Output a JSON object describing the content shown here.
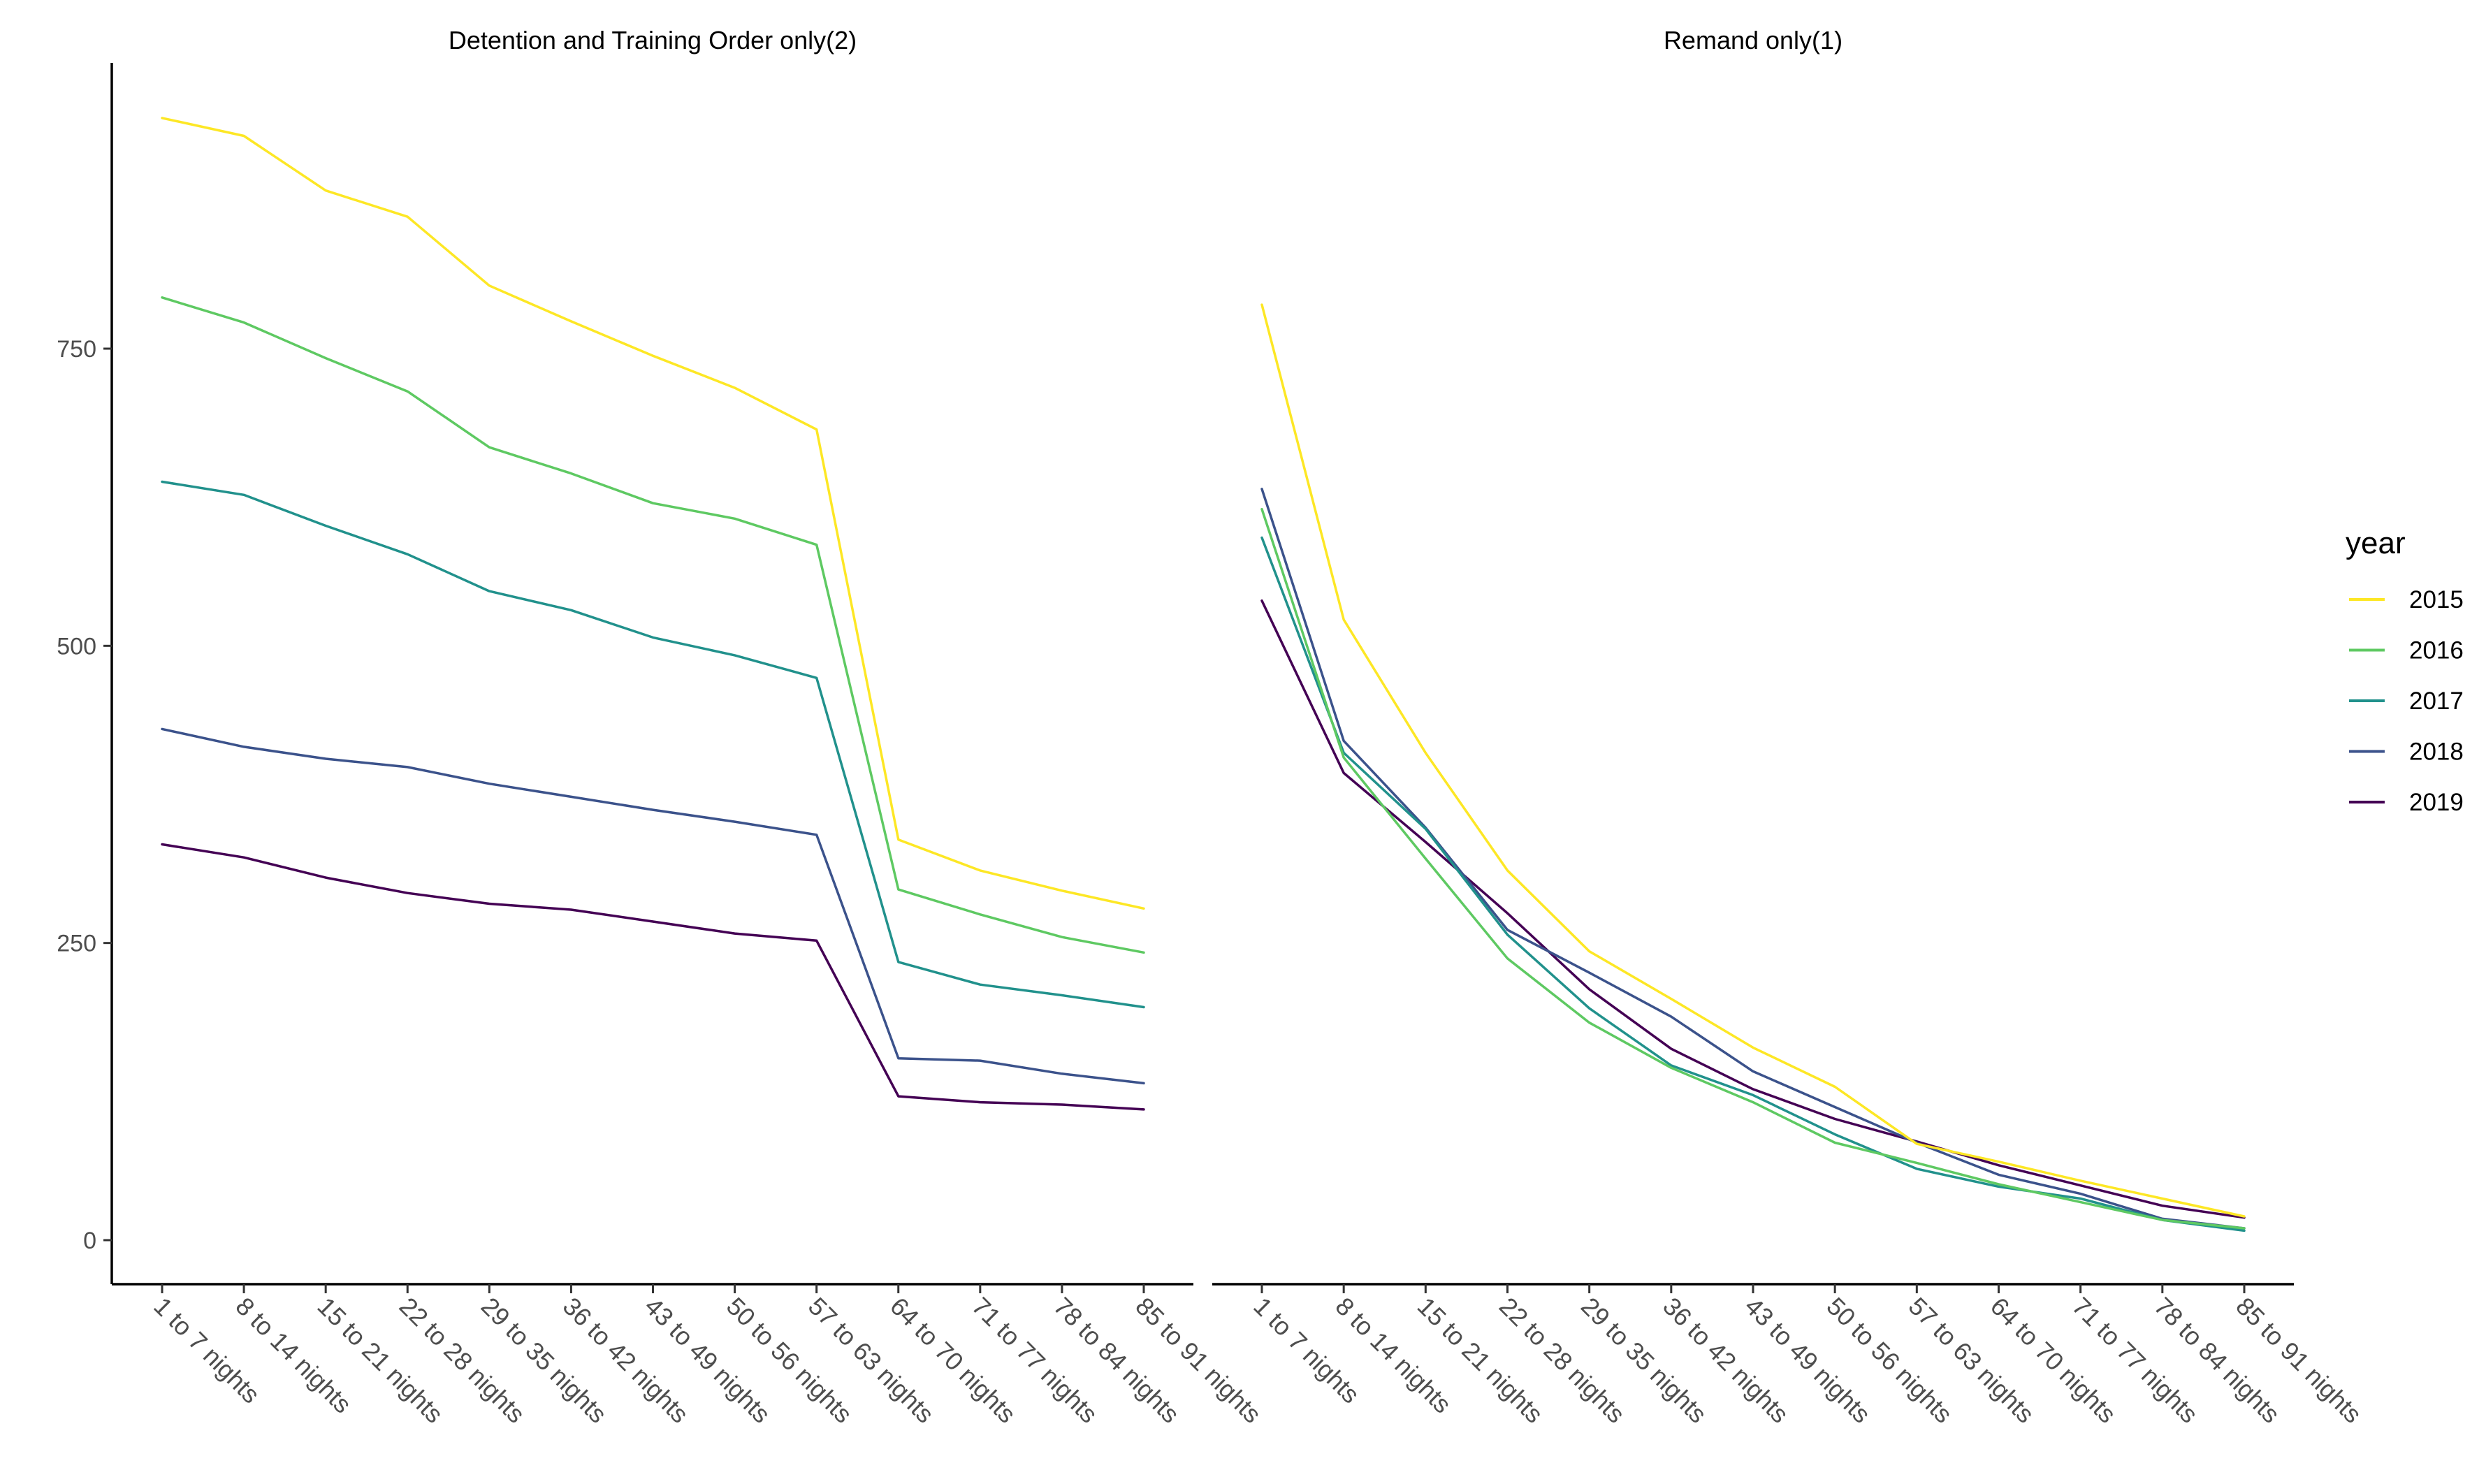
{
  "chart_data": [
    {
      "type": "line",
      "title": "Detention and Training Order only(2)",
      "xlabel": "",
      "ylabel": "",
      "ylim": [
        -40,
        1000
      ],
      "yticks": [
        0,
        250,
        500,
        750
      ],
      "categories": [
        "1 to 7 nights",
        "8 to 14 nights",
        "15 to 21 nights",
        "22 to 28 nights",
        "29 to 35 nights",
        "36 to 42 nights",
        "43 to 49 nights",
        "50 to 56 nights",
        "57 to 63 nights",
        "64 to 70 nights",
        "71 to 77 nights",
        "78 to 84 nights",
        "85 to 91 nights"
      ],
      "series": [
        {
          "name": "2015",
          "values": [
            944,
            929,
            883,
            861,
            803,
            773,
            744,
            717,
            682,
            337,
            311,
            294,
            279
          ]
        },
        {
          "name": "2016",
          "values": [
            793,
            772,
            742,
            714,
            667,
            645,
            620,
            607,
            585,
            295,
            274,
            255,
            242
          ]
        },
        {
          "name": "2017",
          "values": [
            638,
            627,
            601,
            577,
            546,
            530,
            507,
            492,
            473,
            234,
            215,
            206,
            196
          ]
        },
        {
          "name": "2018",
          "values": [
            430,
            415,
            405,
            398,
            384,
            373,
            362,
            352,
            341,
            153,
            151,
            140,
            132
          ]
        },
        {
          "name": "2019",
          "values": [
            333,
            322,
            305,
            292,
            283,
            278,
            268,
            258,
            252,
            121,
            116,
            114,
            110
          ]
        }
      ],
      "grid": false
    },
    {
      "type": "line",
      "title": "Remand only(1)",
      "xlabel": "",
      "ylabel": "",
      "ylim": [
        -40,
        1000
      ],
      "categories": [
        "1 to 7 nights",
        "8 to 14 nights",
        "15 to 21 nights",
        "22 to 28 nights",
        "29 to 35 nights",
        "36 to 42 nights",
        "43 to 49 nights",
        "50 to 56 nights",
        "57 to 63 nights",
        "64 to 70 nights",
        "71 to 77 nights",
        "78 to 84 nights",
        "85 to 91 nights"
      ],
      "series": [
        {
          "name": "2015",
          "values": [
            787,
            522,
            410,
            311,
            243,
            203,
            162,
            129,
            81,
            66,
            50,
            35,
            20
          ]
        },
        {
          "name": "2016",
          "values": [
            615,
            406,
            321,
            237,
            183,
            145,
            116,
            82,
            65,
            47,
            32,
            17,
            10
          ]
        },
        {
          "name": "2017",
          "values": [
            591,
            410,
            346,
            257,
            195,
            147,
            122,
            89,
            60,
            45,
            35,
            17,
            8
          ]
        },
        {
          "name": "2018",
          "values": [
            632,
            420,
            347,
            261,
            225,
            188,
            142,
            112,
            82,
            55,
            39,
            18,
            10
          ]
        },
        {
          "name": "2019",
          "values": [
            538,
            393,
            335,
            275,
            211,
            161,
            127,
            102,
            83,
            63,
            46,
            29,
            19
          ]
        }
      ],
      "grid": false
    }
  ],
  "legend": {
    "title": "year",
    "position": "right",
    "entries": [
      {
        "label": "2015",
        "color": "#FDE725"
      },
      {
        "label": "2016",
        "color": "#5EC962"
      },
      {
        "label": "2017",
        "color": "#21918C"
      },
      {
        "label": "2018",
        "color": "#3B528B"
      },
      {
        "label": "2019",
        "color": "#440154"
      }
    ]
  }
}
